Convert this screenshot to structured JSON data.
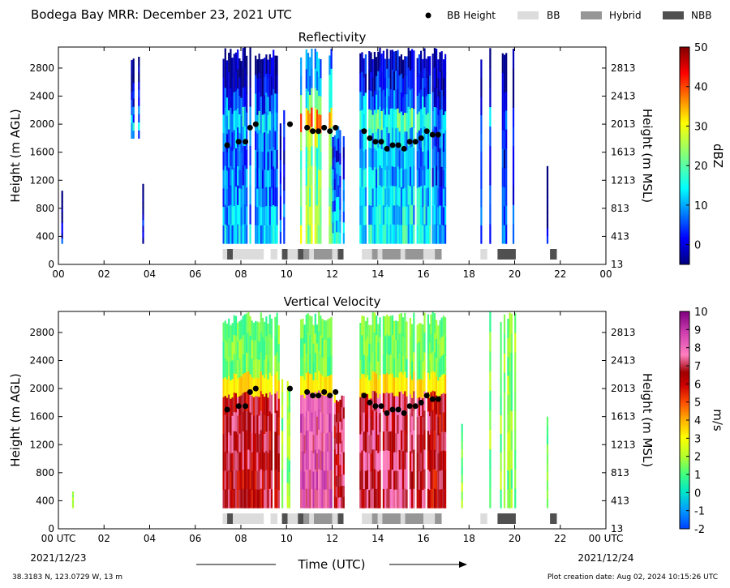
{
  "header": {
    "title": "Bodega Bay MRR:  December 23, 2021 UTC",
    "legend": [
      {
        "label": "BB Height",
        "kind": "dot",
        "color": "#000000"
      },
      {
        "label": "BB",
        "kind": "swatch",
        "color": "#dcdcdc"
      },
      {
        "label": "Hybrid",
        "kind": "swatch",
        "color": "#969696"
      },
      {
        "label": "NBB",
        "kind": "swatch",
        "color": "#505050"
      }
    ]
  },
  "footer": {
    "location": "38.3183 N, 123.0729 W, 13 m",
    "creation": "Plot creation date: Aug 02, 2024 10:15:26 UTC",
    "xlabel": "Time (UTC)",
    "date_start": "2021/12/23",
    "date_end": "2021/12/24"
  },
  "chart_data": [
    {
      "type": "heatmap",
      "title": "Reflectivity",
      "ylabel": "Height (m AGL)",
      "ylabel_right": "Height (m MSL)",
      "colorbar_label": "dBZ",
      "colorbar_ticks": [
        "0",
        "10",
        "20",
        "30",
        "40",
        "50"
      ],
      "clim": [
        -5,
        50
      ],
      "colormap": "jet",
      "xlim": [
        0,
        24
      ],
      "ylim": [
        0,
        3100
      ],
      "x_ticks": [
        "00",
        "02",
        "04",
        "06",
        "08",
        "10",
        "12",
        "14",
        "16",
        "18",
        "20",
        "22",
        "00"
      ],
      "y_ticks": [
        "0",
        "400",
        "800",
        "1200",
        "1600",
        "2000",
        "2400",
        "2800"
      ],
      "y_ticks_right": [
        "13",
        "413",
        "813",
        "1213",
        "1613",
        "2013",
        "2413",
        "2813"
      ],
      "bb_height": {
        "x": [
          7.4,
          7.9,
          8.2,
          8.4,
          8.65,
          10.15,
          10.9,
          11.15,
          11.4,
          11.65,
          11.9,
          12.15,
          13.4,
          13.65,
          13.9,
          14.15,
          14.4,
          14.65,
          14.9,
          15.15,
          15.4,
          15.65,
          15.9,
          16.15,
          16.4,
          16.65
        ],
        "y": [
          1700,
          1750,
          1750,
          1950,
          2000,
          2000,
          1950,
          1900,
          1900,
          1950,
          1900,
          1950,
          1900,
          1800,
          1750,
          1750,
          1650,
          1700,
          1700,
          1650,
          1750,
          1750,
          1800,
          1900,
          1850,
          1850
        ]
      },
      "bb_type": [
        {
          "type": "BB",
          "start": 7.2,
          "end": 7.4
        },
        {
          "type": "NBB",
          "start": 7.4,
          "end": 7.65
        },
        {
          "type": "BB",
          "start": 7.65,
          "end": 9.0
        },
        {
          "type": "BB",
          "start": 9.3,
          "end": 9.6
        },
        {
          "type": "NBB",
          "start": 9.8,
          "end": 10.05
        },
        {
          "type": "BB",
          "start": 10.05,
          "end": 10.5
        },
        {
          "type": "NBB",
          "start": 10.5,
          "end": 10.75
        },
        {
          "type": "Hybrid",
          "start": 10.75,
          "end": 11.0
        },
        {
          "type": "BB",
          "start": 11.0,
          "end": 11.2
        },
        {
          "type": "Hybrid",
          "start": 11.2,
          "end": 12.0
        },
        {
          "type": "BB",
          "start": 12.0,
          "end": 12.25
        },
        {
          "type": "NBB",
          "start": 12.25,
          "end": 12.5
        },
        {
          "type": "BB",
          "start": 13.3,
          "end": 13.75
        },
        {
          "type": "Hybrid",
          "start": 13.75,
          "end": 14.0
        },
        {
          "type": "BB",
          "start": 14.0,
          "end": 14.2
        },
        {
          "type": "Hybrid",
          "start": 14.2,
          "end": 15.0
        },
        {
          "type": "BB",
          "start": 15.0,
          "end": 15.2
        },
        {
          "type": "Hybrid",
          "start": 15.2,
          "end": 16.0
        },
        {
          "type": "BB",
          "start": 16.0,
          "end": 16.5
        },
        {
          "type": "Hybrid",
          "start": 16.5,
          "end": 16.8
        },
        {
          "type": "BB",
          "start": 18.5,
          "end": 18.8
        },
        {
          "type": "NBB",
          "start": 19.25,
          "end": 20.05
        },
        {
          "type": "NBB",
          "start": 21.55,
          "end": 21.85
        }
      ]
    },
    {
      "type": "heatmap",
      "title": "Vertical Velocity",
      "ylabel": "Height (m AGL)",
      "ylabel_right": "Height (m MSL)",
      "colorbar_label": "m/s",
      "colorbar_ticks": [
        "-2",
        "-1",
        "0",
        "1",
        "2",
        "3",
        "4",
        "5",
        "6",
        "7",
        "8",
        "9",
        "10"
      ],
      "clim": [
        -2,
        10
      ],
      "colormap": "velocity",
      "xlim": [
        0,
        24
      ],
      "ylim": [
        0,
        3100
      ],
      "x_ticks": [
        "00 UTC",
        "02",
        "04",
        "06",
        "08",
        "10",
        "12",
        "14",
        "16",
        "18",
        "20",
        "22",
        "00 UTC"
      ],
      "y_ticks": [
        "0",
        "400",
        "800",
        "1200",
        "1600",
        "2000",
        "2400",
        "2800"
      ],
      "y_ticks_right": [
        "13",
        "413",
        "813",
        "1213",
        "1613",
        "2013",
        "2413",
        "2813"
      ],
      "bb_height": {
        "x": [
          7.4,
          7.9,
          8.2,
          8.4,
          8.65,
          10.15,
          10.9,
          11.15,
          11.4,
          11.65,
          11.9,
          12.15,
          13.4,
          13.65,
          13.9,
          14.15,
          14.4,
          14.65,
          14.9,
          15.15,
          15.4,
          15.65,
          15.9,
          16.15,
          16.4,
          16.65
        ],
        "y": [
          1700,
          1750,
          1750,
          1950,
          2000,
          2000,
          1950,
          1900,
          1900,
          1950,
          1900,
          1950,
          1900,
          1800,
          1750,
          1750,
          1650,
          1700,
          1700,
          1650,
          1750,
          1750,
          1800,
          1900,
          1850,
          1850
        ]
      },
      "bb_type": [
        {
          "type": "BB",
          "start": 7.2,
          "end": 7.4
        },
        {
          "type": "NBB",
          "start": 7.4,
          "end": 7.65
        },
        {
          "type": "BB",
          "start": 7.65,
          "end": 9.0
        },
        {
          "type": "BB",
          "start": 9.3,
          "end": 9.6
        },
        {
          "type": "NBB",
          "start": 9.8,
          "end": 10.05
        },
        {
          "type": "BB",
          "start": 10.05,
          "end": 10.5
        },
        {
          "type": "NBB",
          "start": 10.5,
          "end": 10.75
        },
        {
          "type": "Hybrid",
          "start": 10.75,
          "end": 11.0
        },
        {
          "type": "BB",
          "start": 11.0,
          "end": 11.2
        },
        {
          "type": "Hybrid",
          "start": 11.2,
          "end": 12.0
        },
        {
          "type": "BB",
          "start": 12.0,
          "end": 12.25
        },
        {
          "type": "NBB",
          "start": 12.25,
          "end": 12.5
        },
        {
          "type": "BB",
          "start": 13.3,
          "end": 13.75
        },
        {
          "type": "Hybrid",
          "start": 13.75,
          "end": 14.0
        },
        {
          "type": "BB",
          "start": 14.0,
          "end": 14.2
        },
        {
          "type": "Hybrid",
          "start": 14.2,
          "end": 15.0
        },
        {
          "type": "BB",
          "start": 15.0,
          "end": 15.2
        },
        {
          "type": "Hybrid",
          "start": 15.2,
          "end": 16.0
        },
        {
          "type": "BB",
          "start": 16.0,
          "end": 16.5
        },
        {
          "type": "Hybrid",
          "start": 16.5,
          "end": 16.8
        },
        {
          "type": "BB",
          "start": 18.5,
          "end": 18.8
        },
        {
          "type": "NBB",
          "start": 19.25,
          "end": 20.05
        },
        {
          "type": "NBB",
          "start": 21.55,
          "end": 21.85
        }
      ]
    }
  ]
}
